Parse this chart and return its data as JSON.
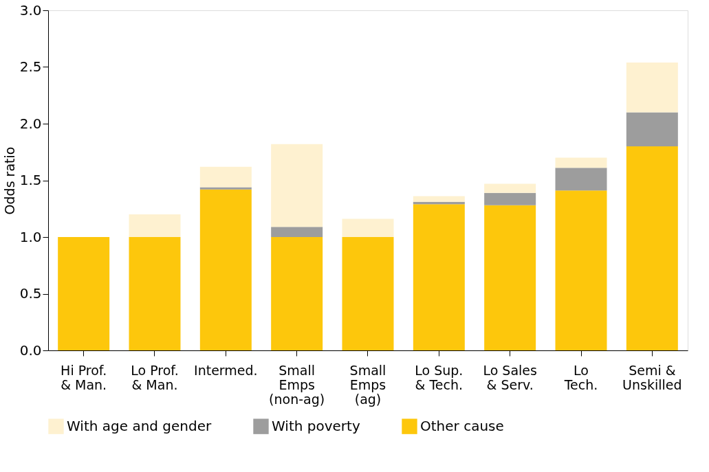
{
  "chart_data": {
    "type": "bar",
    "stacked": true,
    "ylabel": "Odds ratio",
    "categories": [
      "Hi Prof.\n& Man.",
      "Lo Prof.\n& Man.",
      "Intermed.",
      "Small\nEmps\n(non-ag)",
      "Small\nEmps\n(ag)",
      "Lo Sup.\n& Tech.",
      "Lo Sales\n& Serv.",
      "Lo\nTech.",
      "Semi &\nUnskilled"
    ],
    "series": [
      {
        "name": "Other cause",
        "color": "#fdc70c",
        "values": [
          1.0,
          1.0,
          1.42,
          1.0,
          1.0,
          1.29,
          1.28,
          1.41,
          1.8
        ]
      },
      {
        "name": "With poverty",
        "color": "#9d9d9d",
        "values": [
          0,
          0,
          0.02,
          0.09,
          0,
          0.02,
          0.11,
          0.2,
          0.3
        ]
      },
      {
        "name": "With age and gender",
        "color": "#fef1d0",
        "values": [
          0,
          0.2,
          0.18,
          0.73,
          0.16,
          0.05,
          0.08,
          0.09,
          0.44
        ]
      }
    ],
    "ylim": [
      0,
      3
    ],
    "yticks": [
      {
        "value": 0,
        "label": "0.0"
      },
      {
        "value": 0.5,
        "label": "0.5"
      },
      {
        "value": 1,
        "label": "1.0"
      },
      {
        "value": 1.5,
        "label": "1.5"
      },
      {
        "value": 2,
        "label": "2.0"
      },
      {
        "value": 2.5,
        "label": "2.5"
      },
      {
        "value": 3,
        "label": "3.0"
      }
    ],
    "grid": false,
    "legend": "bottom"
  }
}
